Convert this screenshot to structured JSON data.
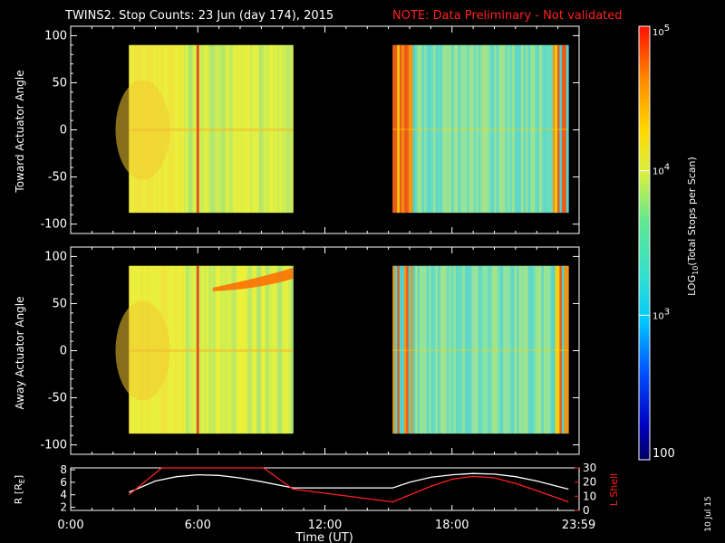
{
  "title": "TWINS2. Stop Counts: 23 Jun (day 174), 2015",
  "note": "NOTE: Data Preliminary - Not validated",
  "side_date": "10 Jul 15",
  "colors": {
    "background": "#000000",
    "axis": "#ffffff",
    "note": "#ff2020",
    "r_line": "#ffffff",
    "lshell_line": "#ff2020"
  },
  "chart_data": [
    {
      "type": "heatmap",
      "panel": "toward",
      "ylabel": "Toward Actuator Angle",
      "ylim": [
        -110,
        110
      ],
      "yticks": [
        100,
        50,
        0,
        -50,
        -100
      ],
      "xlim": [
        0,
        24
      ],
      "data_blocks_hours": [
        [
          2.75,
          10.5
        ],
        [
          15.2,
          23.5
        ]
      ],
      "angle_range": [
        -88,
        90
      ],
      "spike_hour": 6.0
    },
    {
      "type": "heatmap",
      "panel": "away",
      "ylabel": "Away Actuator Angle",
      "ylim": [
        -110,
        110
      ],
      "yticks": [
        100,
        50,
        0,
        -50,
        -100
      ],
      "xlim": [
        0,
        24
      ],
      "data_blocks_hours": [
        [
          2.75,
          10.5
        ],
        [
          15.2,
          23.5
        ]
      ],
      "angle_range": [
        -88,
        90
      ],
      "spike_hour": 6.0
    },
    {
      "type": "line",
      "panel": "orbit",
      "ylabel_left": "R [R",
      "ylabel_left_sub": "E",
      "ylabel_left_end": "]",
      "ylabel_right": "L Shell",
      "ylim_left": [
        1.5,
        8.3
      ],
      "ylim_right": [
        0,
        30
      ],
      "yticks_left": [
        8,
        6,
        4,
        2
      ],
      "yticks_right": [
        30,
        20,
        10,
        0
      ],
      "xticks": [
        {
          "x": 0,
          "label": "0:00"
        },
        {
          "x": 6,
          "label": "6:00"
        },
        {
          "x": 12,
          "label": "12:00"
        },
        {
          "x": 18,
          "label": "18:00"
        },
        {
          "x": 23.983,
          "label": "23:59"
        }
      ],
      "xlabel": "Time (UT)",
      "series": [
        {
          "name": "R",
          "axis": "left",
          "x": [
            2.75,
            4,
            5,
            6,
            7,
            8,
            9,
            10.5,
            12,
            15.2,
            16,
            17,
            18,
            19,
            20,
            21,
            22,
            23.5
          ],
          "y": [
            4.4,
            6.2,
            6.9,
            7.2,
            7.1,
            6.7,
            6.1,
            5.1,
            5.1,
            5.1,
            6.0,
            6.8,
            7.2,
            7.4,
            7.3,
            6.9,
            6.2,
            4.9
          ]
        },
        {
          "name": "L Shell",
          "axis": "right",
          "x": [
            2.75,
            4.3,
            9.1,
            10.5,
            15.2,
            17,
            18,
            19,
            20,
            21,
            22,
            23.5
          ],
          "y": [
            11,
            30,
            30,
            15,
            6,
            17,
            22,
            24,
            23,
            19,
            14,
            6
          ]
        }
      ]
    }
  ],
  "colorbar": {
    "label": "LOG",
    "label_sub": "10",
    "label_end": "(Total Stops per Scan)",
    "ticks": [
      {
        "value": 100000,
        "label": "10",
        "sup": "5"
      },
      {
        "value": 10000,
        "label": "10",
        "sup": "4"
      },
      {
        "value": 1000,
        "label": "10",
        "sup": "3"
      },
      {
        "value": 100,
        "label": "100",
        "sup": ""
      }
    ],
    "range_log": [
      2,
      5
    ]
  }
}
